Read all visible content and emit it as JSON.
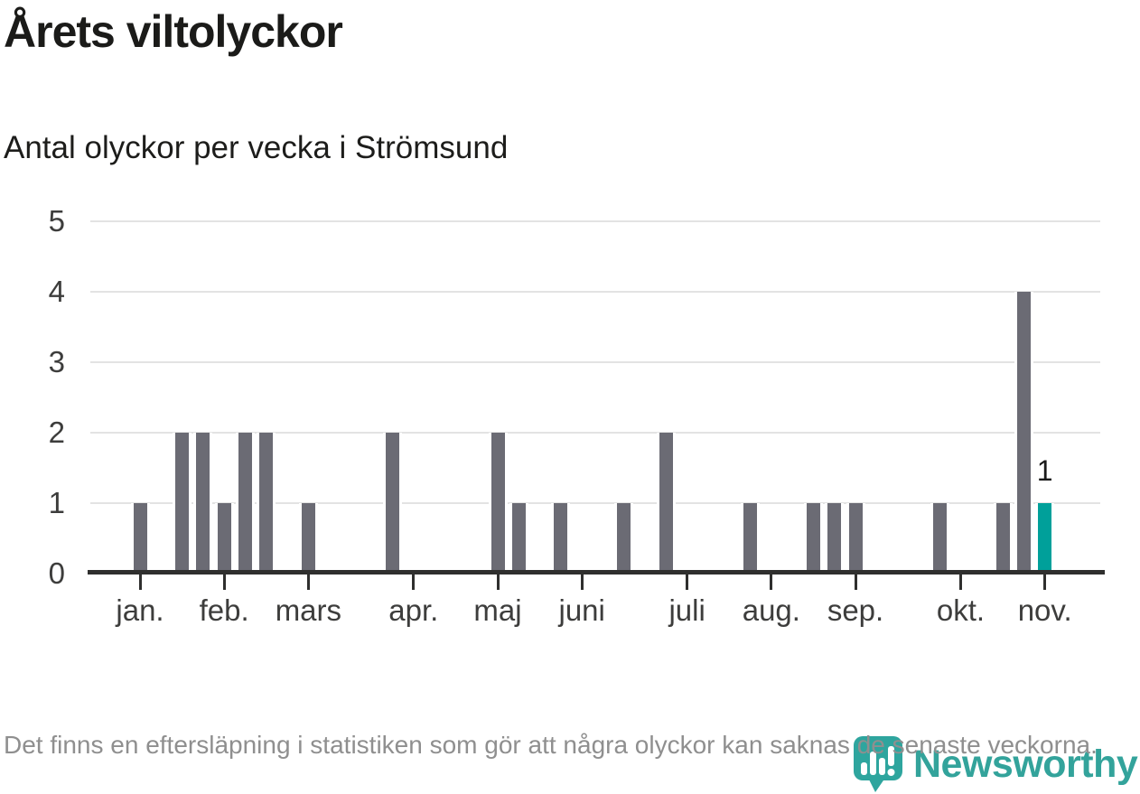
{
  "header": {
    "title": "Årets viltolyckor",
    "subtitle": "Antal olyckor per vecka i Strömsund"
  },
  "chart_data": {
    "type": "bar",
    "title": "Årets viltolyckor",
    "subtitle": "Antal olyckor per vecka i Strömsund",
    "ylim": [
      0,
      5
    ],
    "y_ticks": [
      "0",
      "1",
      "2",
      "3",
      "4",
      "5"
    ],
    "grid": "horizontal",
    "x_axis_months": [
      {
        "label": "jan.",
        "week": 2
      },
      {
        "label": "feb.",
        "week": 6
      },
      {
        "label": "mars",
        "week": 10
      },
      {
        "label": "apr.",
        "week": 15
      },
      {
        "label": "maj",
        "week": 19
      },
      {
        "label": "juni",
        "week": 23
      },
      {
        "label": "juli",
        "week": 28
      },
      {
        "label": "aug.",
        "week": 32
      },
      {
        "label": "sep.",
        "week": 36
      },
      {
        "label": "okt.",
        "week": 41
      },
      {
        "label": "nov.",
        "week": 45
      }
    ],
    "bars": [
      {
        "week": 2,
        "value": 1
      },
      {
        "week": 4,
        "value": 2
      },
      {
        "week": 5,
        "value": 2
      },
      {
        "week": 6,
        "value": 1
      },
      {
        "week": 7,
        "value": 2
      },
      {
        "week": 8,
        "value": 2
      },
      {
        "week": 10,
        "value": 1
      },
      {
        "week": 14,
        "value": 2
      },
      {
        "week": 19,
        "value": 2
      },
      {
        "week": 20,
        "value": 1
      },
      {
        "week": 22,
        "value": 1
      },
      {
        "week": 25,
        "value": 1
      },
      {
        "week": 27,
        "value": 2
      },
      {
        "week": 31,
        "value": 1
      },
      {
        "week": 34,
        "value": 1
      },
      {
        "week": 35,
        "value": 1
      },
      {
        "week": 36,
        "value": 1
      },
      {
        "week": 40,
        "value": 1
      },
      {
        "week": 43,
        "value": 1
      },
      {
        "week": 44,
        "value": 4
      },
      {
        "week": 45,
        "value": 1,
        "highlight": true,
        "data_label": "1"
      }
    ],
    "colors": {
      "bar": "#6b6b74",
      "highlight": "#00a09a",
      "gridline": "#e3e3e3",
      "axis": "#2f2f2e",
      "tick_label": "#3d3d3c"
    }
  },
  "footer": {
    "note": "Det finns en eftersläpning i statistiken som gör att några olyckor kan saknas de senaste veckorna."
  },
  "logo": {
    "text": "Newsworthy",
    "color": "#33a39b"
  }
}
